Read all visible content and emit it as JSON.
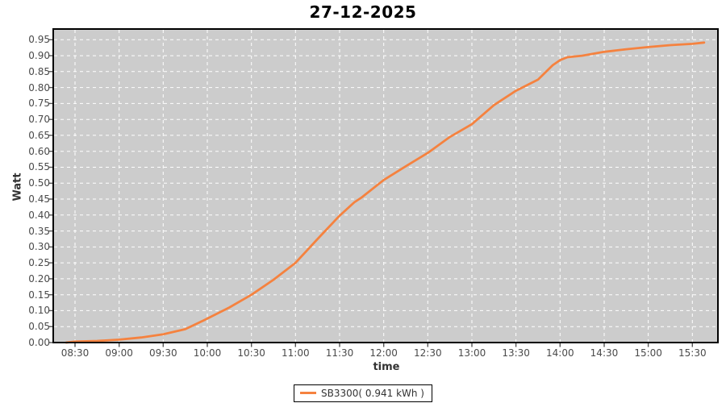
{
  "title": "27-12-2025",
  "axes": {
    "y_label": "Watt",
    "x_label": "time",
    "y_tick_labels": [
      "0.00",
      "0.05",
      "0.10",
      "0.15",
      "0.20",
      "0.25",
      "0.30",
      "0.35",
      "0.40",
      "0.45",
      "0.50",
      "0.55",
      "0.60",
      "0.65",
      "0.70",
      "0.75",
      "0.80",
      "0.85",
      "0.90",
      "0.95"
    ],
    "x_tick_labels": [
      "08:30",
      "09:00",
      "09:30",
      "10:00",
      "10:30",
      "11:00",
      "11:30",
      "12:00",
      "12:30",
      "13:00",
      "13:30",
      "14:00",
      "14:30",
      "15:00",
      "15:30"
    ]
  },
  "legend": {
    "series_label": "SB3300( 0.941 kWh )"
  },
  "colors": {
    "series": "#f5823f",
    "plot_bg": "#cccccc",
    "grid": "#ffffff",
    "border": "#000000",
    "tick": "#555555",
    "tick_text": "#4a4a4a"
  },
  "chart_data": {
    "type": "line",
    "title": "27-12-2025",
    "xlabel": "time",
    "ylabel": "Watt",
    "x_tick_labels": [
      "08:30",
      "09:00",
      "09:30",
      "10:00",
      "10:30",
      "11:00",
      "11:30",
      "12:00",
      "12:30",
      "13:00",
      "13:30",
      "14:00",
      "14:30",
      "15:00",
      "15:30"
    ],
    "y_ticks": [
      0.0,
      0.05,
      0.1,
      0.15,
      0.2,
      0.25,
      0.3,
      0.35,
      0.4,
      0.45,
      0.5,
      0.55,
      0.6,
      0.65,
      0.7,
      0.75,
      0.8,
      0.85,
      0.9,
      0.95
    ],
    "ylim": [
      0,
      0.98
    ],
    "grid": true,
    "legend_position": "bottom-center",
    "series": [
      {
        "name": "SB3300( 0.941 kWh )",
        "final_value_kwh": 0.941,
        "points": [
          [
            "08:24",
            0.0
          ],
          [
            "08:30",
            0.003
          ],
          [
            "08:45",
            0.005
          ],
          [
            "09:00",
            0.009
          ],
          [
            "09:15",
            0.016
          ],
          [
            "09:30",
            0.026
          ],
          [
            "09:45",
            0.042
          ],
          [
            "10:00",
            0.075
          ],
          [
            "10:15",
            0.11
          ],
          [
            "10:30",
            0.15
          ],
          [
            "10:45",
            0.197
          ],
          [
            "11:00",
            0.25
          ],
          [
            "11:15",
            0.325
          ],
          [
            "11:30",
            0.398
          ],
          [
            "11:40",
            0.44
          ],
          [
            "11:45",
            0.455
          ],
          [
            "12:00",
            0.51
          ],
          [
            "12:15",
            0.553
          ],
          [
            "12:30",
            0.595
          ],
          [
            "12:45",
            0.645
          ],
          [
            "13:00",
            0.685
          ],
          [
            "13:15",
            0.745
          ],
          [
            "13:30",
            0.79
          ],
          [
            "13:45",
            0.825
          ],
          [
            "13:55",
            0.87
          ],
          [
            "14:00",
            0.886
          ],
          [
            "14:05",
            0.895
          ],
          [
            "14:15",
            0.9
          ],
          [
            "14:30",
            0.912
          ],
          [
            "14:45",
            0.92
          ],
          [
            "15:00",
            0.927
          ],
          [
            "15:15",
            0.933
          ],
          [
            "15:30",
            0.937
          ],
          [
            "15:38",
            0.941
          ]
        ]
      }
    ]
  }
}
